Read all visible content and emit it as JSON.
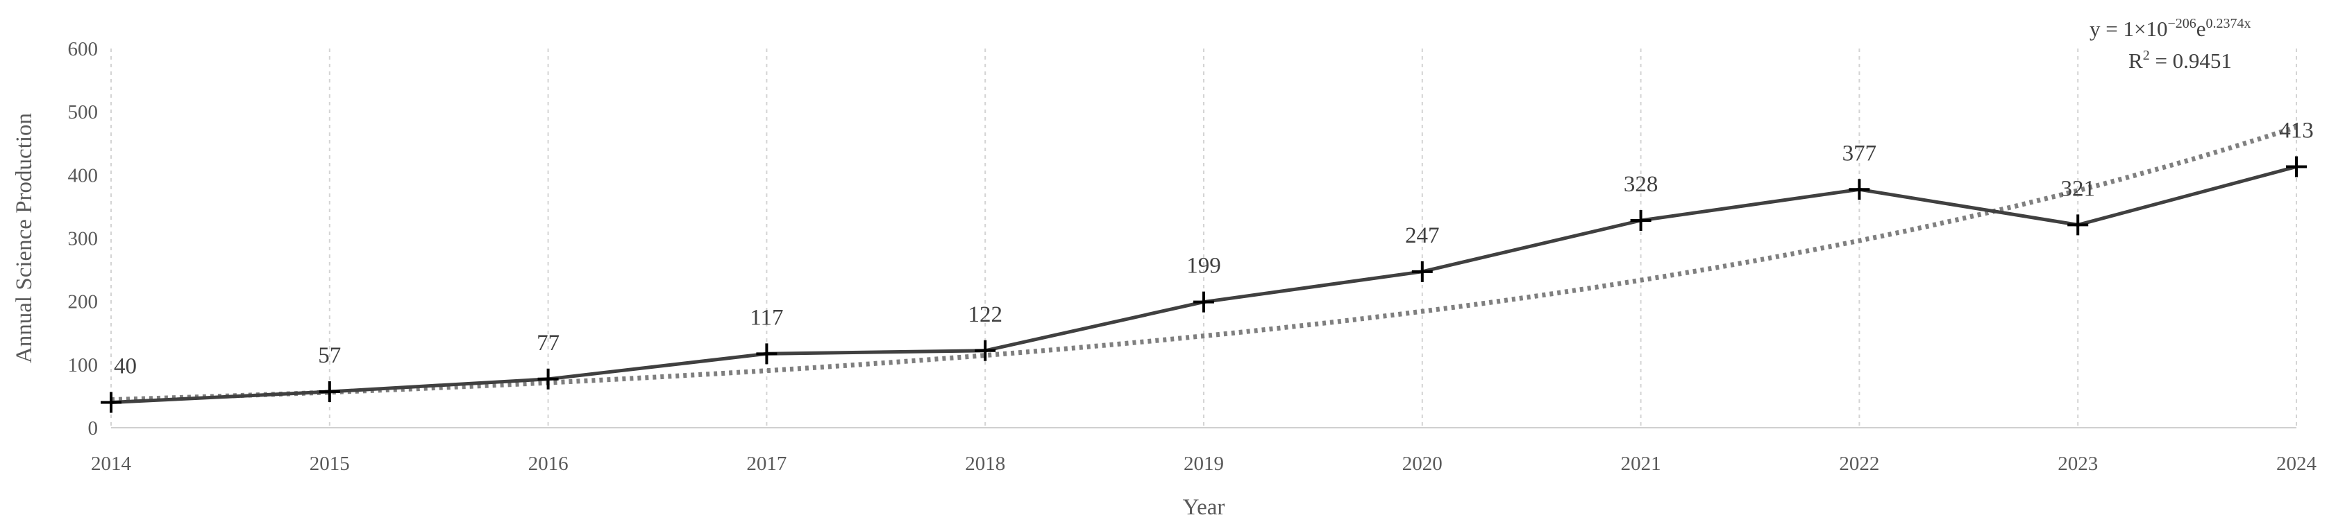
{
  "chart_data": {
    "type": "line",
    "title": "",
    "xlabel": "Year",
    "ylabel": "Annual Science Production",
    "x": [
      "2014",
      "2015",
      "2016",
      "2017",
      "2018",
      "2019",
      "2020",
      "2021",
      "2022",
      "2023",
      "2024"
    ],
    "series": [
      {
        "values": [
          40,
          57,
          77,
          117,
          122,
          199,
          247,
          328,
          377,
          321,
          413
        ]
      }
    ],
    "data_labels": [
      "40",
      "57",
      "77",
      "117",
      "122",
      "199",
      "247",
      "328",
      "377",
      "321",
      "413"
    ],
    "ylim": [
      0,
      600
    ],
    "yticks": [
      0,
      100,
      200,
      300,
      400,
      500,
      600
    ],
    "grid": "vertical dotted",
    "legend": "none",
    "marker": "plus",
    "trendline": {
      "type": "exponential",
      "equation_prefix": "y = 1×10",
      "equation_exponent": "−206",
      "equation_base": "e",
      "equation_power": "0.2374x",
      "r2_prefix": "R",
      "r2_sup": "2",
      "r2_value": " = 0.9451",
      "coefficient": 1e-206,
      "rate": 0.2374
    },
    "colors": {
      "series": "#404040",
      "trend": "#7f7f7f",
      "marker": "#000000"
    }
  }
}
